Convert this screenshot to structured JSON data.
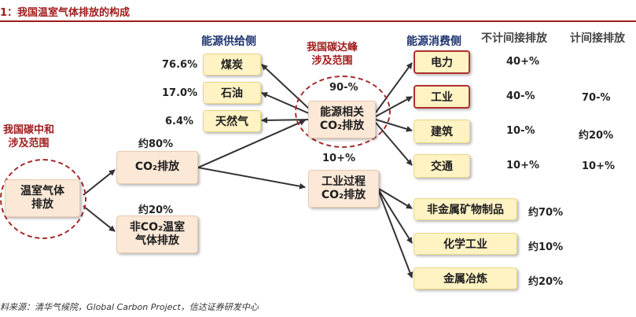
{
  "title": "1：我国温室气体排放的构成",
  "source": "料来源：清华气候院，Global Carbon Project，信达证券研发中心",
  "headers": {
    "supply": "能源供给侧",
    "consume": "能源消费侧",
    "direct": "不计间接排放",
    "indirect": "计间接排放"
  },
  "scope": {
    "neutral": "我国碳中和\n涉及范围",
    "peak": "我国碳达峰\n涉及范围"
  },
  "nodes": {
    "ghg": "温室气体\n排放",
    "co2": "CO₂排放",
    "nonco2": "非CO₂温室\n气体排放",
    "energy": "能源相关\nCO₂排放",
    "industrial": "工业过程\nCO₂排放",
    "coal": "煤炭",
    "oil": "石油",
    "gas": "天然气",
    "power": "电力",
    "industry": "工业",
    "building": "建筑",
    "transport": "交通",
    "nonmetal": "非金属矿物制品",
    "chem": "化学工业",
    "metal": "金属冶炼"
  },
  "shares": {
    "coal": "76.6%",
    "oil": "17.0%",
    "gas": "6.4%",
    "co2": "约80%",
    "nonco2": "约20%",
    "energy": "90-%",
    "industrial": "10+%",
    "power_direct": "40+%",
    "industry_direct": "40-%",
    "industry_indirect": "70-%",
    "building_direct": "10-%",
    "building_indirect": "约20%",
    "transport_direct": "10+%",
    "transport_indirect": "10+%",
    "nonmetal": "约70%",
    "chem": "约10%",
    "metal": "约20%"
  }
}
